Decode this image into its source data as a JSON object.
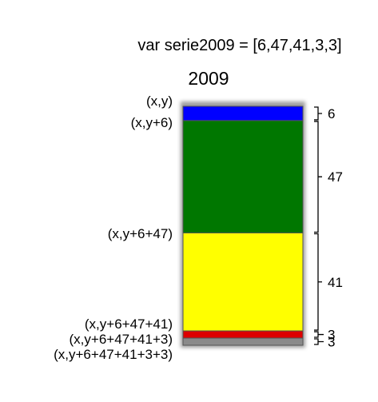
{
  "code_line": "var serie2009 = [6,47,41,3,3]",
  "title": "2009",
  "segments": [
    {
      "value": 6,
      "color": "#0000ff",
      "size_label": "6"
    },
    {
      "value": 47,
      "color": "#007700",
      "size_label": "47"
    },
    {
      "value": 41,
      "color": "#ffff00",
      "size_label": "41"
    },
    {
      "value": 3,
      "color": "#dd0000",
      "size_label": "3"
    },
    {
      "value": 3,
      "color": "#8a8a8a",
      "size_label": "3"
    }
  ],
  "coord_labels": [
    "(x,y)",
    "(x,y+6)",
    "(x,y+6+47)",
    "(x,y+6+47+41)",
    "(x,y+6+47+41+3)",
    "(x,y+6+47+41+3+3)"
  ]
}
